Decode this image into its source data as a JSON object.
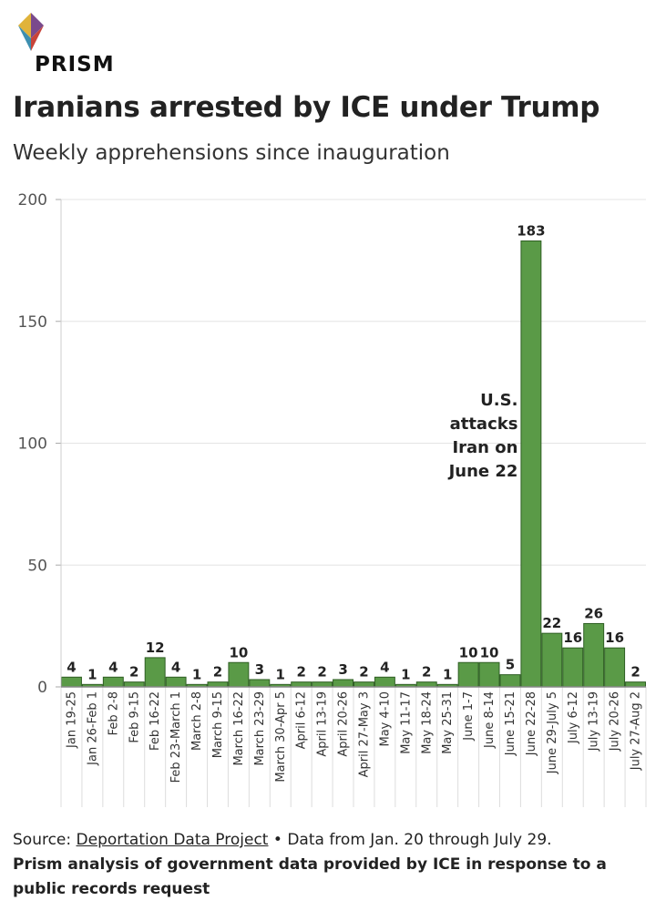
{
  "brand": {
    "name": "PRISM"
  },
  "header": {
    "title": "Iranians arrested by ICE under Trump",
    "subtitle": "Weekly apprehensions since inauguration"
  },
  "colors": {
    "bar": "#5a9a47",
    "bar_stroke": "#2f5f24",
    "grid": "#e4e4e4",
    "axis": "#888888"
  },
  "chart_data": {
    "type": "bar",
    "title": "Iranians arrested by ICE under Trump",
    "subtitle": "Weekly apprehensions since inauguration",
    "xlabel": "",
    "ylabel": "",
    "ylim": [
      0,
      200
    ],
    "yticks": [
      0,
      50,
      100,
      150,
      200
    ],
    "categories": [
      "Jan 19-25",
      "Jan 26-Feb 1",
      "Feb 2-8",
      "Feb 9-15",
      "Feb 16-22",
      "Feb 23-March 1",
      "March 2-8",
      "March 9-15",
      "March 16-22",
      "March 23-29",
      "March 30-Apr 5",
      "April 6-12",
      "April 13-19",
      "April 20-26",
      "April 27-May 3",
      "May 4-10",
      "May 11-17",
      "May 18-24",
      "May 25-31",
      "June 1-7",
      "June 8-14",
      "June 15-21",
      "June 22-28",
      "June 29-July 5",
      "July 6-12",
      "July 13-19",
      "July 20-26",
      "July 27-Aug 2"
    ],
    "values": [
      4,
      1,
      4,
      2,
      12,
      4,
      1,
      2,
      10,
      3,
      1,
      2,
      2,
      3,
      2,
      4,
      1,
      2,
      1,
      10,
      10,
      5,
      183,
      22,
      16,
      26,
      16,
      2
    ],
    "annotation": {
      "lines": [
        "U.S.",
        "attacks",
        "Iran on",
        "June 22"
      ],
      "category": "June 15-21"
    }
  },
  "footer": {
    "source_prefix": "Source: ",
    "source_link": "Deportation Data Project",
    "source_suffix": " • Data from Jan. 20 through July 29.",
    "note": "Prism analysis of government data provided by ICE in response to a public records request"
  }
}
